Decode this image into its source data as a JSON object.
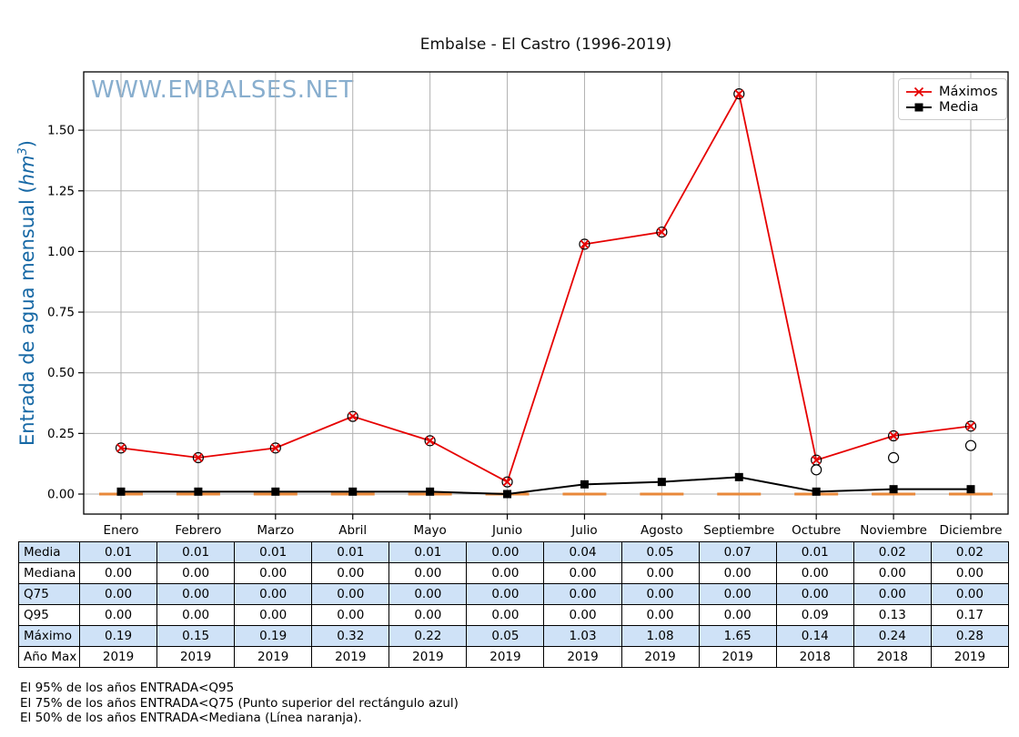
{
  "watermark": "WWW.EMBALSES.NET",
  "colors": {
    "maximos": "#e60000",
    "media": "#000000",
    "median_line": "#e8883a",
    "grid": "#b0b0b0",
    "axis_label": "#1668a5",
    "watermark": "#74a0c6",
    "table_highlight": "#cfe2f7"
  },
  "chart_data": {
    "type": "line",
    "title": "Embalse - El Castro (1996-2019)",
    "ylabel": {
      "prefix": "Entrada de agua mensual (",
      "unit": "hm",
      "exponent": "3",
      "suffix": ")"
    },
    "categories": [
      "Enero",
      "Febrero",
      "Marzo",
      "Abril",
      "Mayo",
      "Junio",
      "Julio",
      "Agosto",
      "Septiembre",
      "Octubre",
      "Noviembre",
      "Diciembre"
    ],
    "series": [
      {
        "name": "Máximos",
        "marker": "x-in-circle",
        "color": "#e60000",
        "values": [
          0.19,
          0.15,
          0.19,
          0.32,
          0.22,
          0.05,
          1.03,
          1.08,
          1.65,
          0.14,
          0.24,
          0.28
        ]
      },
      {
        "name": "Media",
        "marker": "square",
        "color": "#000000",
        "values": [
          0.01,
          0.01,
          0.01,
          0.01,
          0.01,
          0.0,
          0.04,
          0.05,
          0.07,
          0.01,
          0.02,
          0.02
        ]
      }
    ],
    "medians": [
      0,
      0,
      0,
      0,
      0,
      0,
      0,
      0,
      0,
      0,
      0,
      0
    ],
    "outliers": [
      {
        "month": "Octubre",
        "value": 0.1
      },
      {
        "month": "Noviembre",
        "value": 0.15
      },
      {
        "month": "Diciembre",
        "value": 0.2
      }
    ],
    "yticks": [
      "0.00",
      "0.25",
      "0.50",
      "0.75",
      "1.00",
      "1.25",
      "1.50"
    ],
    "ytick_values": [
      0,
      0.25,
      0.5,
      0.75,
      1.0,
      1.25,
      1.5
    ],
    "ylim": [
      -0.08,
      1.74
    ],
    "grid": true,
    "legend_position": "top-right"
  },
  "table": {
    "highlight_color": "#cfe2f7",
    "rows": [
      {
        "label": "Media",
        "highlighted": true,
        "values": [
          "0.01",
          "0.01",
          "0.01",
          "0.01",
          "0.01",
          "0.00",
          "0.04",
          "0.05",
          "0.07",
          "0.01",
          "0.02",
          "0.02"
        ]
      },
      {
        "label": "Mediana",
        "highlighted": false,
        "values": [
          "0.00",
          "0.00",
          "0.00",
          "0.00",
          "0.00",
          "0.00",
          "0.00",
          "0.00",
          "0.00",
          "0.00",
          "0.00",
          "0.00"
        ]
      },
      {
        "label": "Q75",
        "highlighted": true,
        "values": [
          "0.00",
          "0.00",
          "0.00",
          "0.00",
          "0.00",
          "0.00",
          "0.00",
          "0.00",
          "0.00",
          "0.00",
          "0.00",
          "0.00"
        ]
      },
      {
        "label": "Q95",
        "highlighted": false,
        "values": [
          "0.00",
          "0.00",
          "0.00",
          "0.00",
          "0.00",
          "0.00",
          "0.00",
          "0.00",
          "0.00",
          "0.09",
          "0.13",
          "0.17"
        ]
      },
      {
        "label": "Máximo",
        "highlighted": true,
        "values": [
          "0.19",
          "0.15",
          "0.19",
          "0.32",
          "0.22",
          "0.05",
          "1.03",
          "1.08",
          "1.65",
          "0.14",
          "0.24",
          "0.28"
        ]
      },
      {
        "label": "Año Max",
        "highlighted": false,
        "values": [
          "2019",
          "2019",
          "2019",
          "2019",
          "2019",
          "2019",
          "2019",
          "2019",
          "2019",
          "2018",
          "2018",
          "2019"
        ]
      }
    ]
  },
  "footnotes": [
    "El 95% de los años ENTRADA<Q95",
    "El 75% de los años ENTRADA<Q75 (Punto superior del rectángulo azul)",
    "El 50% de los años ENTRADA<Mediana (Línea naranja)."
  ]
}
